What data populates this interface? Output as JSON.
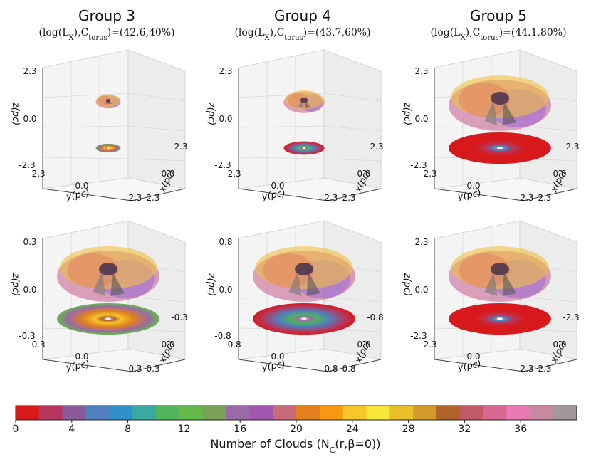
{
  "chart_data": {
    "type": "other",
    "description_kind": "3D torus cloud-distribution panels with projected disk colormap",
    "columns": [
      {
        "title": "Group 3",
        "subtitle": "(log(L_X),C_torus)=(42.6,40%)",
        "logLX": 42.6,
        "ctorus_percent": 40
      },
      {
        "title": "Group 4",
        "subtitle": "(log(L_X),C_torus)=(43.7,60%)",
        "logLX": 43.7,
        "ctorus_percent": 60
      },
      {
        "title": "Group 5",
        "subtitle": "(log(L_X),C_torus)=(44.1,80%)",
        "logLX": 44.1,
        "ctorus_percent": 80
      }
    ],
    "panels": [
      {
        "row": 1,
        "col": 1,
        "z_ticks": [
          "2.3",
          "0.0",
          "-2.3"
        ],
        "y_ticks": [
          "-2.3",
          "0.0",
          "2.3"
        ],
        "x_ticks": [
          "-2.3",
          "0.0",
          "2.3"
        ],
        "torus_size": 0.12,
        "disk_peak": 24
      },
      {
        "row": 1,
        "col": 2,
        "z_ticks": [
          "2.3",
          "0.0",
          "-2.3"
        ],
        "y_ticks": [
          "-2.3",
          "0.0",
          "2.3"
        ],
        "x_ticks": [
          "-2.3",
          "0.0",
          "2.3"
        ],
        "torus_size": 0.3,
        "disk_peak": 10
      },
      {
        "row": 1,
        "col": 3,
        "z_ticks": [
          "2.3",
          "0.0",
          "-2.3"
        ],
        "y_ticks": [
          "-2.3",
          "0.0",
          "2.3"
        ],
        "x_ticks": [
          "-2.3",
          "0.0",
          "2.3"
        ],
        "torus_size": 1.0,
        "disk_peak": 2
      },
      {
        "row": 2,
        "col": 1,
        "z_ticks": [
          "0.3",
          "0.0",
          "-0.3"
        ],
        "y_ticks": [
          "-0.3",
          "0.0",
          "0.3"
        ],
        "x_ticks": [
          "-0.3",
          "0.0",
          "0.3"
        ],
        "torus_size": 1.0,
        "disk_peak": 24
      },
      {
        "row": 2,
        "col": 2,
        "z_ticks": [
          "0.8",
          "0.0",
          "-0.8"
        ],
        "y_ticks": [
          "-0.8",
          "0.0",
          "0.8"
        ],
        "x_ticks": [
          "-0.8",
          "0.0",
          "0.8"
        ],
        "torus_size": 1.0,
        "disk_peak": 10
      },
      {
        "row": 2,
        "col": 3,
        "z_ticks": [
          "2.3",
          "0.0",
          "-2.3"
        ],
        "y_ticks": [
          "-2.3",
          "0.0",
          "2.3"
        ],
        "x_ticks": [
          "-2.3",
          "0.0",
          "2.3"
        ],
        "torus_size": 1.0,
        "disk_peak": 2
      }
    ],
    "axis_labels": {
      "z": "z(pc)",
      "y": "y(pc)",
      "x": "x(pc)"
    },
    "colorbar": {
      "label": "Number of Clouds (N_C(r,β=0))",
      "range": [
        0,
        40
      ],
      "ticks": [
        "0",
        "4",
        "8",
        "12",
        "16",
        "20",
        "24",
        "28",
        "32",
        "36"
      ],
      "colors": [
        "#d7191c",
        "#b6375e",
        "#8a5a9a",
        "#4f7fbd",
        "#2e8fc9",
        "#38a8a0",
        "#4fb45a",
        "#62b848",
        "#7a9f58",
        "#9a6aa8",
        "#a356b0",
        "#c96a7a",
        "#e0801e",
        "#f59a12",
        "#f5c52a",
        "#f5e83a",
        "#e8c02a",
        "#d39a2a",
        "#b0632a",
        "#c25a6a",
        "#d96890",
        "#e87ab6",
        "#c88aa0",
        "#a0989a"
      ]
    }
  }
}
